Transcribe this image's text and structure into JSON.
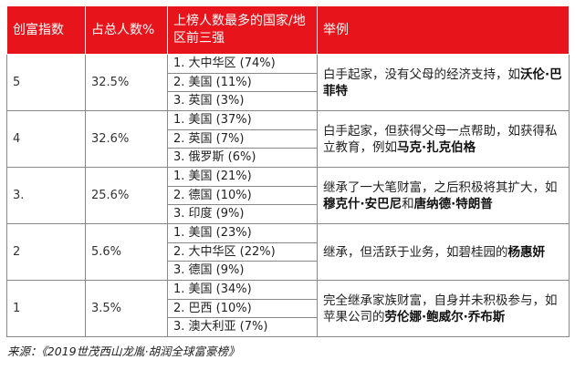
{
  "table": {
    "headers": {
      "index": "创富指数",
      "percent": "占总人数%",
      "countries": "上榜人数最多的国家/地区前三强",
      "example": "举例"
    },
    "rows": [
      {
        "index": "5",
        "percent": "32.5%",
        "countries": [
          "1. 大中华区 (74%)",
          "2. 美国 (11%)",
          "3. 英国 (3%)"
        ],
        "example_plain": "白手起家，没有父母的经济支持，如",
        "example_bold": "沃伦·巴菲特",
        "example_tail": ""
      },
      {
        "index": "4",
        "percent": "32.6%",
        "countries": [
          "1. 美国 (37%)",
          "2. 英国 (7%)",
          "3. 俄罗斯 (6%)"
        ],
        "example_plain": "白手起家，但获得父母一点帮助，如获得私立教育，例如",
        "example_bold": "马克·扎克伯格",
        "example_tail": ""
      },
      {
        "index": "3.",
        "percent": "25.6%",
        "countries": [
          "1. 美国 (21%)",
          "2. 德国 (10%)",
          "3. 印度 (9%)"
        ],
        "example_plain": "继承了一大笔财富，之后积极将其扩大，如",
        "example_bold": "穆克什·安巴尼",
        "example_mid": "和",
        "example_bold2": "唐纳德·特朗普",
        "example_tail": ""
      },
      {
        "index": "2",
        "percent": "5.6%",
        "countries": [
          "1. 美国 (23%)",
          "2. 大中华区 (22%)",
          "3. 德国 (9%)"
        ],
        "example_plain": "继承，但活跃于业务，如碧桂园的",
        "example_bold": "杨惠妍",
        "example_tail": ""
      },
      {
        "index": "1",
        "percent": "3.5%",
        "countries": [
          "1. 美国 (34%)",
          "2. 巴西 (10%)",
          "3. 澳大利亚 (7%)"
        ],
        "example_plain": "完全继承家族财富，自身并未积极参与，如苹果公司的",
        "example_bold": "劳伦娜·鲍威尔·乔布斯",
        "example_tail": ""
      }
    ]
  },
  "source": "来源：《2019世茂西山龙胤·胡润全球富豪榜》",
  "colors": {
    "header_bg": "#e8141b",
    "header_text": "#ffffff",
    "border": "#888888"
  }
}
